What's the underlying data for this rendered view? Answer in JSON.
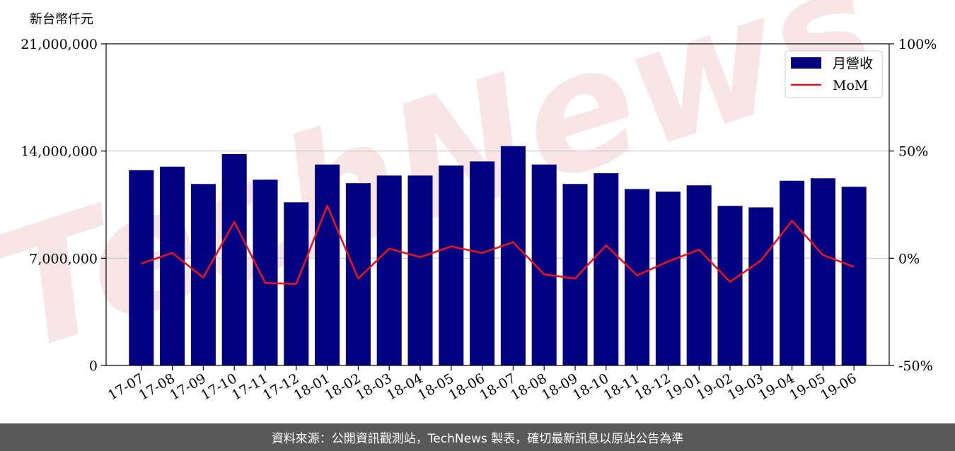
{
  "unit_label": "新台幣仟元",
  "footer_text": "資料來源：公開資訊觀測站，TechNews 製表，確切最新訊息以原站公告為準",
  "watermark": "TechNews",
  "colors": {
    "bar": "#000080",
    "line": "#e8131b",
    "footer_bg": "#595959",
    "watermark": "#f3d0d0"
  },
  "chart_data": {
    "type": "bar",
    "categories": [
      "17-07",
      "17-08",
      "17-09",
      "17-10",
      "17-11",
      "17-12",
      "18-01",
      "18-02",
      "18-03",
      "18-04",
      "18-05",
      "18-06",
      "18-07",
      "18-08",
      "18-09",
      "18-10",
      "18-11",
      "18-12",
      "19-01",
      "19-02",
      "19-03",
      "19-04",
      "19-05",
      "19-06"
    ],
    "series": [
      {
        "name": "月營收",
        "type": "bar",
        "axis": "left",
        "values": [
          12750000,
          12980000,
          11850000,
          13800000,
          12130000,
          10650000,
          13120000,
          11900000,
          12400000,
          12400000,
          13050000,
          13320000,
          14320000,
          13120000,
          11850000,
          12550000,
          11520000,
          11350000,
          11760000,
          10420000,
          10320000,
          12060000,
          12220000,
          11670000
        ]
      },
      {
        "name": "MoM",
        "type": "line",
        "axis": "right",
        "values": [
          -2.5,
          2.5,
          -9,
          17,
          -11.5,
          -12,
          24.5,
          -9.5,
          4.5,
          0.5,
          5.5,
          2.5,
          7.5,
          -7.5,
          -9.5,
          6,
          -8,
          -1.5,
          4,
          -11,
          -1,
          17.5,
          1.5,
          -4
        ]
      }
    ],
    "y_left": {
      "lim": [
        0,
        21000000
      ],
      "ticks": [
        0,
        7000000,
        14000000,
        21000000
      ],
      "tick_labels": [
        "0",
        "7,000,000",
        "14,000,000",
        "21,000,000"
      ]
    },
    "y_right": {
      "lim": [
        -50,
        100
      ],
      "ticks": [
        -50,
        0,
        50,
        100
      ],
      "tick_labels": [
        "-50%",
        "0%",
        "50%",
        "100%"
      ]
    },
    "grid": "horizontal",
    "legend": {
      "position": "top-right",
      "entries": [
        "月營收",
        "MoM"
      ]
    }
  }
}
